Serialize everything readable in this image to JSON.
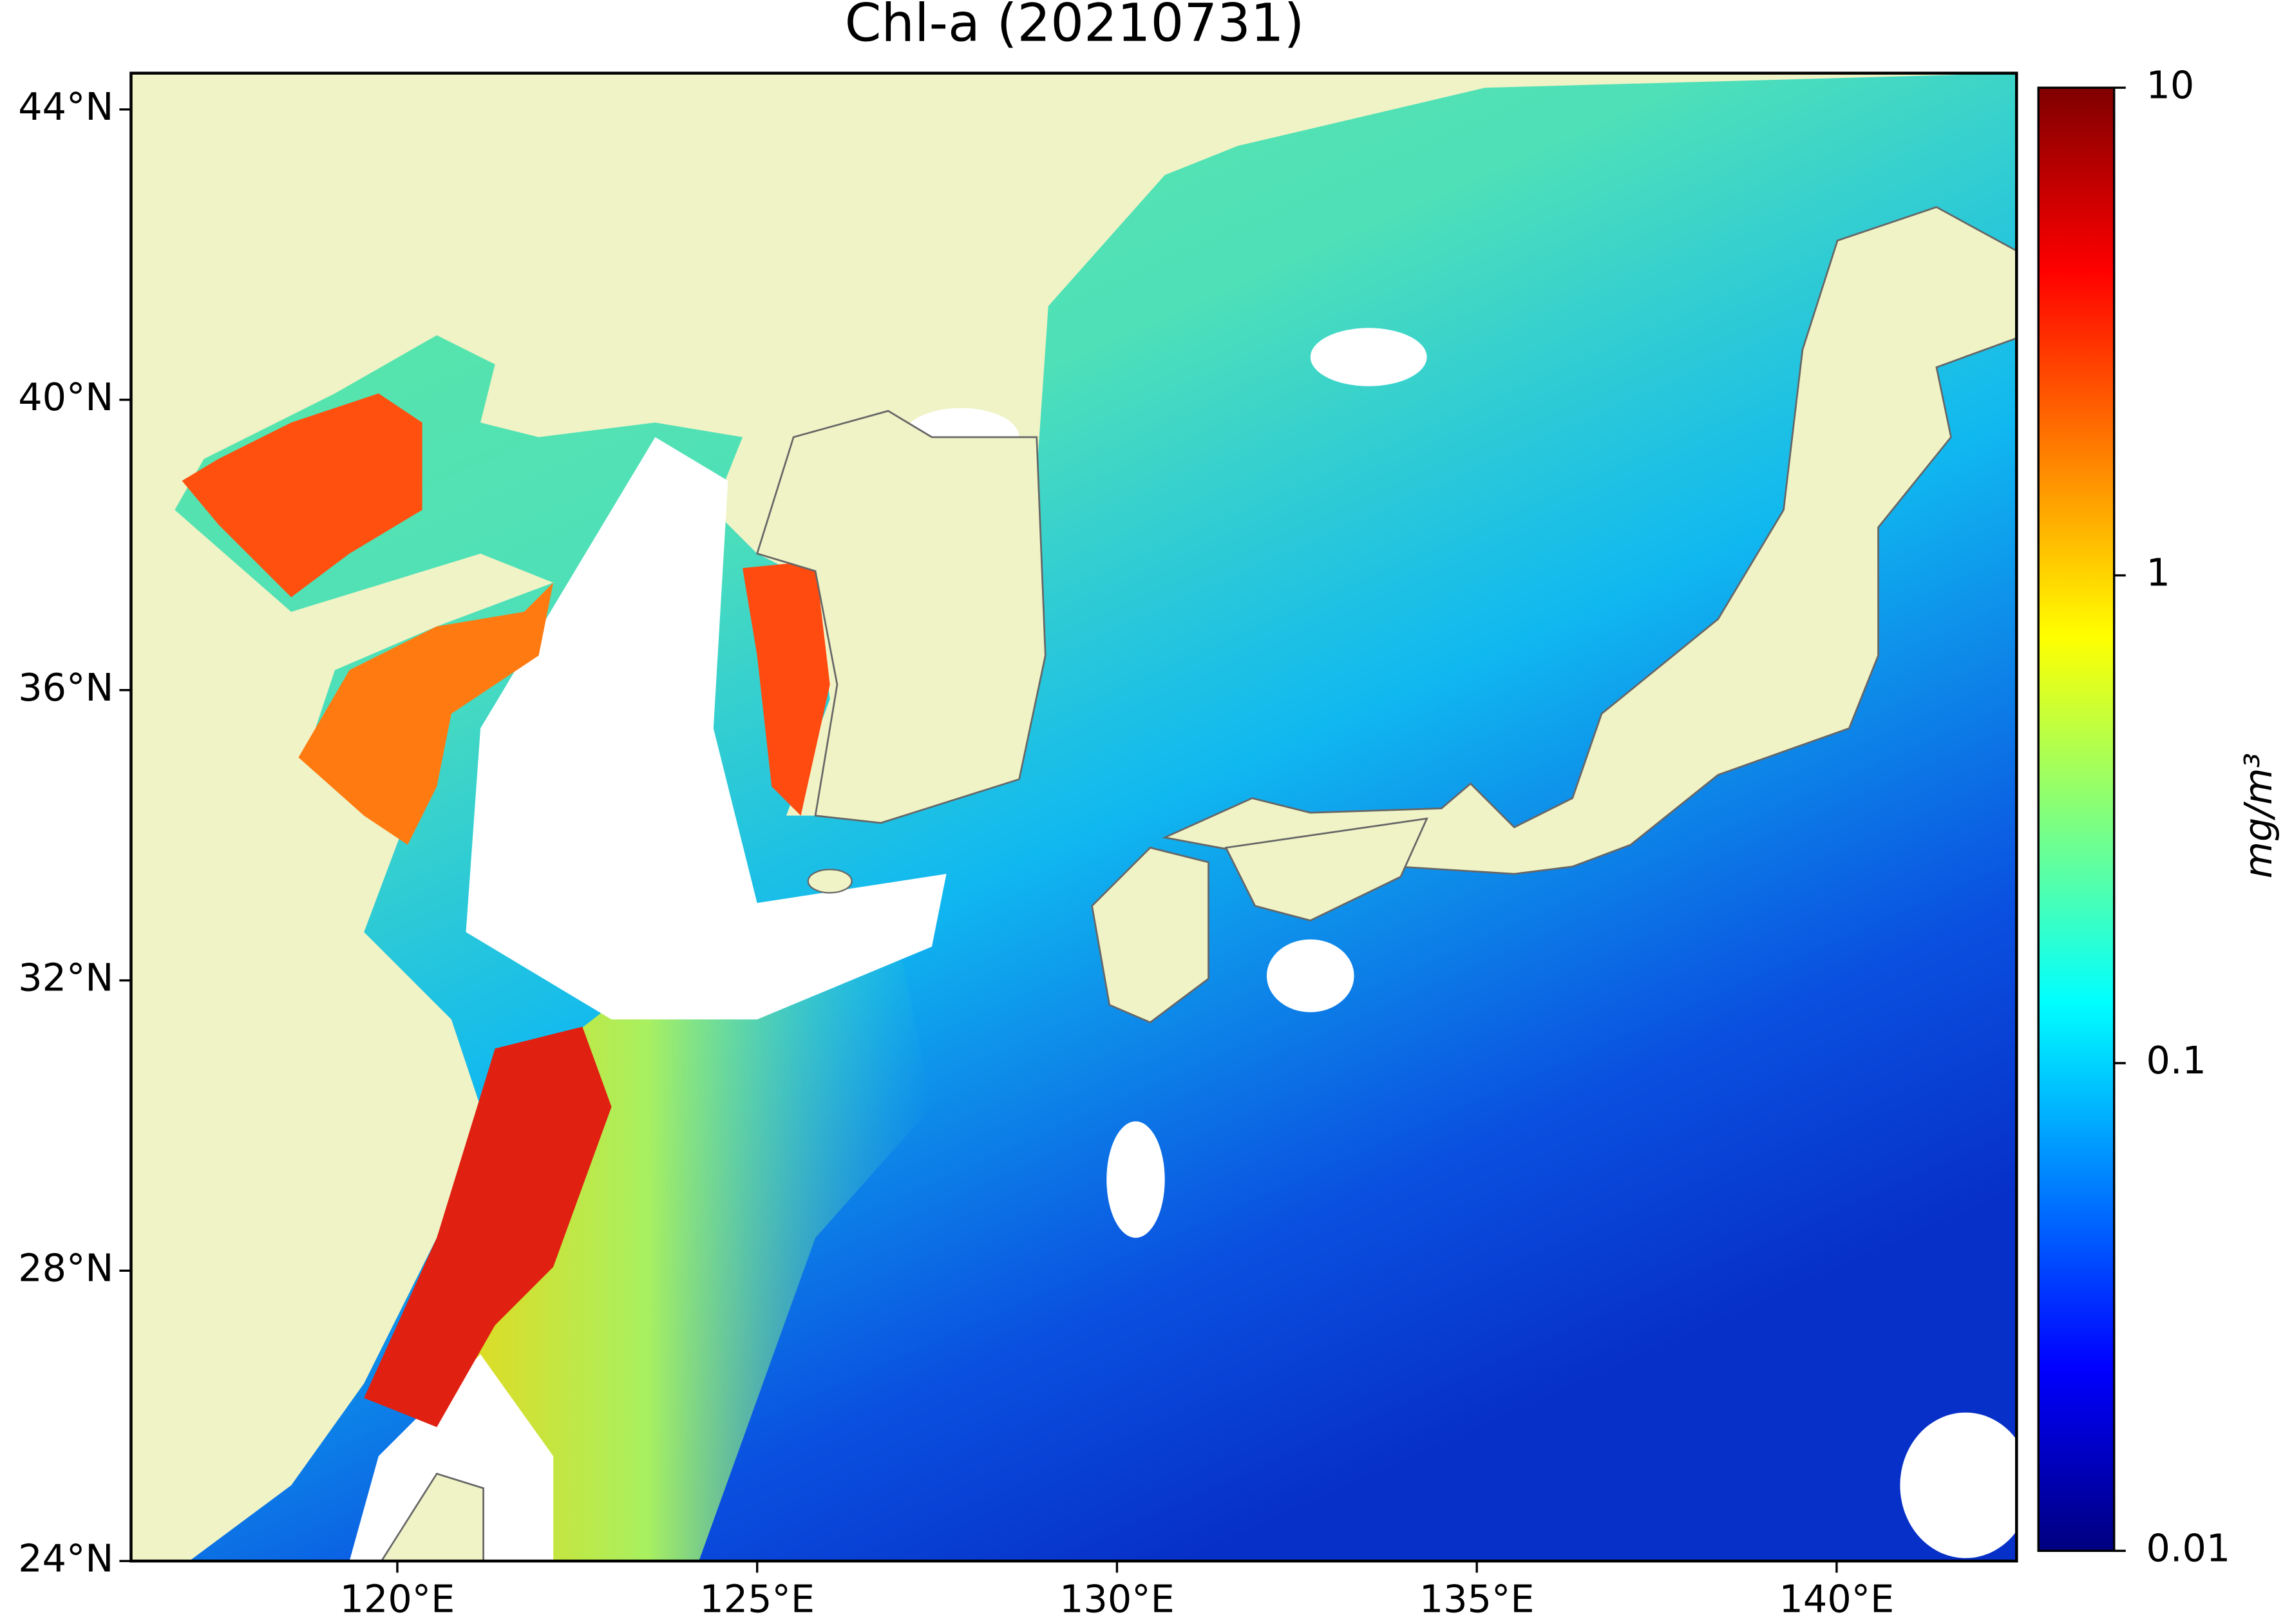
{
  "title": "Chl-a (20210731)",
  "map": {
    "lon_range": [
      116.3,
      142.5
    ],
    "lat_range": [
      24,
      44.5
    ],
    "lat_ticks": [
      {
        "value": 44,
        "label": "44°N"
      },
      {
        "value": 40,
        "label": "40°N"
      },
      {
        "value": 36,
        "label": "36°N"
      },
      {
        "value": 32,
        "label": "32°N"
      },
      {
        "value": 28,
        "label": "28°N"
      },
      {
        "value": 24,
        "label": "24°N"
      }
    ],
    "lon_ticks": [
      {
        "value": 120,
        "label": "120°E"
      },
      {
        "value": 125,
        "label": "125°E"
      },
      {
        "value": 130,
        "label": "130°E"
      },
      {
        "value": 135,
        "label": "135°E"
      },
      {
        "value": 140,
        "label": "140°E"
      }
    ]
  },
  "colorbar": {
    "label": "mg/m³",
    "scale": "log",
    "range": [
      0.01,
      10
    ],
    "ticks": [
      10,
      1,
      0.1,
      0.01
    ],
    "colors": [
      "#00007f",
      "#0000ff",
      "#007fff",
      "#00ffff",
      "#7fff7f",
      "#ffff00",
      "#ff7f00",
      "#ff0000",
      "#7f0000"
    ]
  }
}
